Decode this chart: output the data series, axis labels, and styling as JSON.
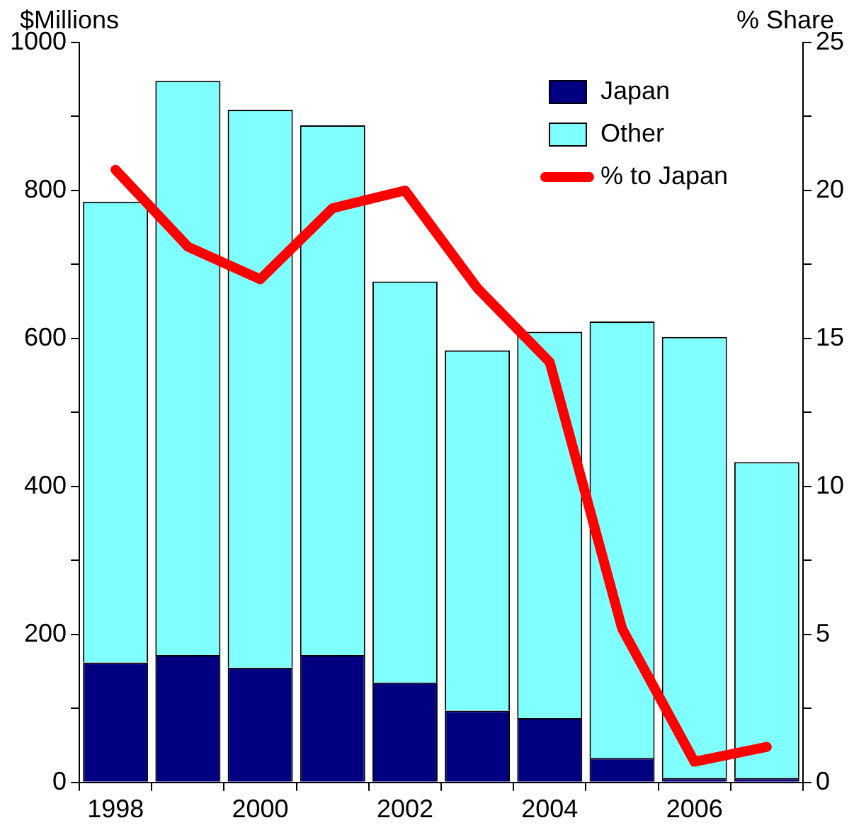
{
  "chart_data": {
    "type": "bar",
    "stacked": true,
    "ylabel": "$Millions",
    "y2label": "% Share",
    "categories": [
      "1998",
      null,
      "2000",
      null,
      "2002",
      null,
      "2004",
      null,
      "2006",
      null
    ],
    "series": [
      {
        "name": "Japan",
        "color": "#000080",
        "values": [
          162,
          172,
          155,
          172,
          135,
          97,
          87,
          33,
          6,
          6
        ]
      },
      {
        "name": "Other",
        "color": "#80ffff",
        "values": [
          623,
          776,
          754,
          716,
          542,
          487,
          522,
          590,
          596,
          427
        ]
      },
      {
        "name": "% to Japan",
        "type": "line",
        "axis": "y2",
        "color": "#ff0000",
        "values": [
          20.7,
          18.1,
          17.0,
          19.4,
          20.0,
          16.7,
          14.2,
          5.2,
          0.7,
          1.2
        ]
      }
    ],
    "ylim": [
      0,
      1000
    ],
    "yticks": [
      0,
      {
        "value": 100,
        "label": null
      },
      200,
      {
        "value": 300,
        "label": null
      },
      400,
      {
        "value": 500,
        "label": null
      },
      600,
      {
        "value": 700,
        "label": null
      },
      800,
      {
        "value": 900,
        "label": null
      },
      1000
    ],
    "y2lim": [
      0,
      25
    ],
    "y2ticks": [
      0,
      {
        "value": 2.5,
        "label": null
      },
      5,
      {
        "value": 7.5,
        "label": null
      },
      10,
      {
        "value": 12.5,
        "label": null
      },
      15,
      {
        "value": 17.5,
        "label": null
      },
      20,
      {
        "value": 22.5,
        "label": null
      },
      25
    ],
    "legend": "top right",
    "marker": "none"
  }
}
